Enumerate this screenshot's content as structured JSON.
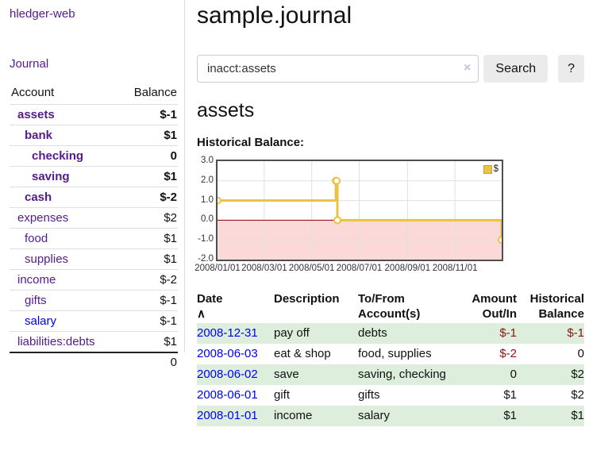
{
  "app": {
    "title": "hledger-web"
  },
  "sidebar": {
    "journal_link": "Journal",
    "headers": {
      "account": "Account",
      "balance": "Balance"
    },
    "rows": [
      {
        "account": "assets",
        "balance": "$-1",
        "depth": 1,
        "bold": true,
        "neg": "strong",
        "link": "purple"
      },
      {
        "account": "bank",
        "balance": "$1",
        "depth": 2,
        "bold": true,
        "neg": null,
        "link": "purple"
      },
      {
        "account": "checking",
        "balance": "0",
        "depth": 3,
        "bold": true,
        "neg": null,
        "link": "purple"
      },
      {
        "account": "saving",
        "balance": "$1",
        "depth": 3,
        "bold": true,
        "neg": null,
        "link": "purple"
      },
      {
        "account": "cash",
        "balance": "$-2",
        "depth": 2,
        "bold": true,
        "neg": "strong",
        "link": "purple"
      },
      {
        "account": "expenses",
        "balance": "$2",
        "depth": 1,
        "bold": false,
        "neg": null,
        "link": "purple"
      },
      {
        "account": "food",
        "balance": "$1",
        "depth": 2,
        "bold": false,
        "neg": null,
        "link": "purple"
      },
      {
        "account": "supplies",
        "balance": "$1",
        "depth": 2,
        "bold": false,
        "neg": null,
        "link": "purple"
      },
      {
        "account": "income",
        "balance": "$-2",
        "depth": 1,
        "bold": false,
        "neg": "muted",
        "link": "purple"
      },
      {
        "account": "gifts",
        "balance": "$-1",
        "depth": 2,
        "bold": false,
        "neg": "muted",
        "link": "purple"
      },
      {
        "account": "salary",
        "balance": "$-1",
        "depth": 2,
        "bold": false,
        "neg": "muted",
        "link": "blue"
      },
      {
        "account": "liabilities:debts",
        "balance": "$1",
        "depth": 1,
        "bold": false,
        "neg": null,
        "link": "purple"
      }
    ],
    "total": "0"
  },
  "main": {
    "title": "sample.journal",
    "search": {
      "value": "inacct:assets",
      "clear_icon": "×",
      "search_label": "Search",
      "help_label": "?"
    },
    "account_heading": "assets",
    "chart_title": "Historical Balance:"
  },
  "chart_data": {
    "type": "line",
    "step": true,
    "title": "Historical Balance",
    "series": [
      {
        "name": "$",
        "color": "#edc240",
        "points": [
          {
            "date": "2008-01-01",
            "value": 1
          },
          {
            "date": "2008-06-01",
            "value": 2
          },
          {
            "date": "2008-06-02",
            "value": 2
          },
          {
            "date": "2008-06-03",
            "value": 0
          },
          {
            "date": "2008-12-31",
            "value": -1
          }
        ]
      }
    ],
    "x_range": [
      "2008-01-01",
      "2008-12-31"
    ],
    "x_ticks": [
      "2008/01/01",
      "2008/03/01",
      "2008/05/01",
      "2008/07/01",
      "2008/09/01",
      "2008/11/01"
    ],
    "y_ticks": [
      "3.0",
      "2.0",
      "1.0",
      "0.0",
      "-1.0",
      "-2.0"
    ],
    "ylim": [
      -2,
      3
    ],
    "grid": true,
    "legend": {
      "position": "top-right"
    },
    "negative_region_fill": "#fbd9d9",
    "zero_line_color": "#8b0000"
  },
  "register": {
    "columns": [
      {
        "line1": "Date",
        "line2": "",
        "sort": "∧"
      },
      {
        "line1": "Description",
        "line2": ""
      },
      {
        "line1": "To/From",
        "line2": "Account(s)"
      },
      {
        "line1": "Amount",
        "line2": "Out/In"
      },
      {
        "line1": "Historical",
        "line2": "Balance"
      }
    ],
    "rows": [
      {
        "date": "2008-12-31",
        "description": "pay off",
        "accounts": "debts",
        "amount": "$-1",
        "amount_neg": true,
        "balance": "$-1",
        "balance_neg": true
      },
      {
        "date": "2008-06-03",
        "description": "eat & shop",
        "accounts": "food, supplies",
        "amount": "$-2",
        "amount_neg": true,
        "balance": "0",
        "balance_neg": false
      },
      {
        "date": "2008-06-02",
        "description": "save",
        "accounts": "saving, checking",
        "amount": "0",
        "amount_neg": false,
        "balance": "$2",
        "balance_neg": false
      },
      {
        "date": "2008-06-01",
        "description": "gift",
        "accounts": "gifts",
        "amount": "$1",
        "amount_neg": false,
        "balance": "$2",
        "balance_neg": false
      },
      {
        "date": "2008-01-01",
        "description": "income",
        "accounts": "salary",
        "amount": "$1",
        "amount_neg": false,
        "balance": "$1",
        "balance_neg": false
      }
    ]
  },
  "colors": {
    "link_purple": "#551a8b",
    "link_blue": "#0000ee",
    "negative_strong": "#8f1010",
    "negative_muted": "#bd7b7b",
    "row_stripe_green": "#ddeedd",
    "chart_line_gold": "#edc240",
    "chart_negative_fill": "#fbd9d9",
    "zero_line_red": "#8b0000",
    "button_gray": "#ebebeb"
  }
}
